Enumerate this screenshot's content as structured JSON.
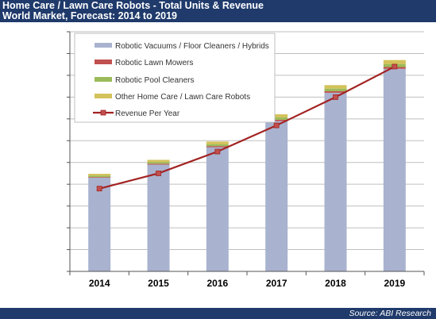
{
  "header": {
    "title_line1": "Home Care / Lawn Care Robots - Total Units & Revenue",
    "title_line2": "World Market, Forecast: 2014 to 2019"
  },
  "footer": {
    "source": "Source: ABI Research"
  },
  "colors": {
    "header_bg": "#1f3a6b",
    "vacuums": "#a9b3cf",
    "lawn_mowers": "#c0504d",
    "pool_cleaners": "#9bbb59",
    "other": "#d4c25a",
    "revenue": "#a32323"
  },
  "chart_data": {
    "type": "bar",
    "stacked": true,
    "title": "Home Care / Lawn Care Robots - Total Units & Revenue",
    "subtitle": "World Market, Forecast: 2014 to 2019",
    "categories": [
      "2014",
      "2015",
      "2016",
      "2017",
      "2018",
      "2019"
    ],
    "grid": true,
    "legend_position": "top-left",
    "y_axis_labels_shown": false,
    "series": [
      {
        "name": "Robotic Vacuums / Floor Cleaners / Hybrids",
        "color": "#a9b3cf",
        "values": [
          4.3,
          4.9,
          5.7,
          6.9,
          8.2,
          9.3
        ]
      },
      {
        "name": "Robotic Lawn Mowers",
        "color": "#c0504d",
        "values": [
          0.03,
          0.04,
          0.05,
          0.06,
          0.07,
          0.08
        ]
      },
      {
        "name": "Robotic Pool Cleaners",
        "color": "#9bbb59",
        "values": [
          0.07,
          0.08,
          0.09,
          0.11,
          0.12,
          0.14
        ]
      },
      {
        "name": "Other Home Care / Lawn Care Robots",
        "color": "#d4c25a",
        "values": [
          0.08,
          0.1,
          0.12,
          0.14,
          0.16,
          0.18
        ]
      }
    ],
    "line_series": {
      "name": "Revenue Per Year",
      "color": "#a32323",
      "values": [
        3.8,
        4.5,
        5.5,
        6.7,
        8.0,
        9.4
      ]
    },
    "ylim": [
      0,
      11
    ]
  }
}
